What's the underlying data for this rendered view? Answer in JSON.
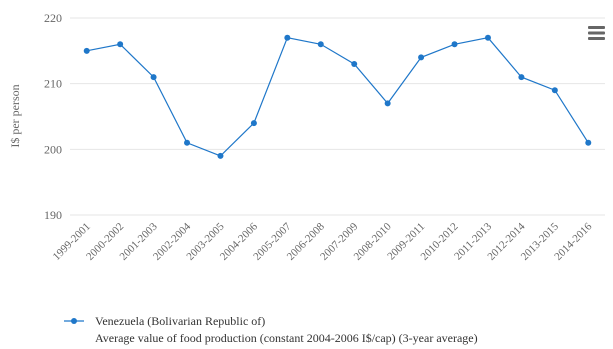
{
  "chart_data": {
    "type": "line",
    "ylabel": "I$ per person",
    "ylim": [
      190,
      220
    ],
    "yticks": [
      190,
      200,
      210,
      220
    ],
    "grid": true,
    "legend_placement": "bottom-left",
    "categories": [
      "1999-2001",
      "2000-2002",
      "2001-2003",
      "2002-2004",
      "2003-2005",
      "2004-2006",
      "2005-2007",
      "2006-2008",
      "2007-2009",
      "2008-2010",
      "2009-2011",
      "2010-2012",
      "2011-2013",
      "2012-2014",
      "2013-2015",
      "2014-2016"
    ],
    "series": [
      {
        "name": "Venezuela (Bolivarian Republic of)",
        "description": "Average value of food production (constant 2004-2006 I$/cap) (3-year average)",
        "color": "#1f77c9",
        "values": [
          215,
          216,
          211,
          201,
          199,
          204,
          217,
          216,
          213,
          207,
          214,
          216,
          217,
          211,
          209,
          201
        ]
      }
    ]
  },
  "icons": {
    "menu": "hamburger-menu-icon"
  }
}
